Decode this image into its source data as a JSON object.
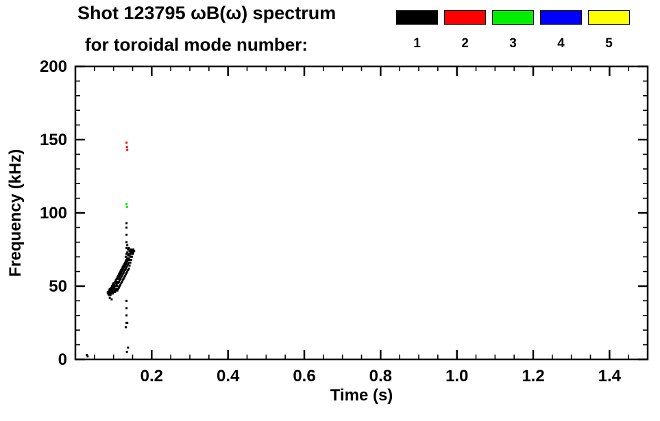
{
  "header": {
    "title_line1": "Shot 123795 ωB(ω) spectrum",
    "title_line2": "for toroidal mode number:"
  },
  "legend": {
    "items": [
      {
        "label": "1",
        "color": "#000000"
      },
      {
        "label": "2",
        "color": "#ff0000"
      },
      {
        "label": "3",
        "color": "#00ee00"
      },
      {
        "label": "4",
        "color": "#0000ff"
      },
      {
        "label": "5",
        "color": "#ffff00"
      }
    ]
  },
  "chart_data": {
    "type": "scatter",
    "title": "Shot 123795 ωB(ω) spectrum for toroidal mode number: 1-5",
    "xlabel": "Time (s)",
    "ylabel": "Frequency (kHz)",
    "xlim": [
      0,
      1.5
    ],
    "ylim": [
      0,
      200
    ],
    "xticks": [
      0.2,
      0.4,
      0.6,
      0.8,
      1.0,
      1.2,
      1.4
    ],
    "xtick_labels": [
      "0.2",
      "0.4",
      "0.6",
      "0.8",
      "1.0",
      "1.2",
      "1.4"
    ],
    "yticks": [
      0,
      50,
      100,
      150,
      200
    ],
    "ytick_labels": [
      "0",
      "50",
      "100",
      "150",
      "200"
    ],
    "x_minor_step": 0.05,
    "y_minor_step": 10,
    "grid": false,
    "legend_position": "top-right",
    "axis_color": "#000000",
    "background": "#ffffff",
    "series": [
      {
        "name": "n=1",
        "color": "#000000",
        "marker_size": 3,
        "points": [
          [
            0.03,
            3
          ],
          [
            0.032,
            2
          ],
          [
            0.085,
            45
          ],
          [
            0.085,
            46
          ],
          [
            0.088,
            44
          ],
          [
            0.088,
            46
          ],
          [
            0.088,
            47
          ],
          [
            0.09,
            42
          ],
          [
            0.09,
            45
          ],
          [
            0.09,
            47
          ],
          [
            0.09,
            48
          ],
          [
            0.092,
            44
          ],
          [
            0.092,
            46
          ],
          [
            0.092,
            48
          ],
          [
            0.094,
            45
          ],
          [
            0.094,
            47
          ],
          [
            0.094,
            49
          ],
          [
            0.095,
            41
          ],
          [
            0.096,
            46
          ],
          [
            0.096,
            48
          ],
          [
            0.096,
            50
          ],
          [
            0.098,
            45
          ],
          [
            0.098,
            47
          ],
          [
            0.098,
            49
          ],
          [
            0.098,
            51
          ],
          [
            0.1,
            46
          ],
          [
            0.1,
            48
          ],
          [
            0.1,
            50
          ],
          [
            0.1,
            52
          ],
          [
            0.102,
            47
          ],
          [
            0.102,
            49
          ],
          [
            0.102,
            51
          ],
          [
            0.104,
            46
          ],
          [
            0.104,
            48
          ],
          [
            0.104,
            50
          ],
          [
            0.104,
            53
          ],
          [
            0.106,
            47
          ],
          [
            0.106,
            50
          ],
          [
            0.106,
            52
          ],
          [
            0.106,
            54
          ],
          [
            0.108,
            48
          ],
          [
            0.108,
            51
          ],
          [
            0.108,
            53
          ],
          [
            0.108,
            55
          ],
          [
            0.11,
            47
          ],
          [
            0.11,
            50
          ],
          [
            0.11,
            53
          ],
          [
            0.11,
            56
          ],
          [
            0.112,
            48
          ],
          [
            0.112,
            52
          ],
          [
            0.112,
            55
          ],
          [
            0.112,
            57
          ],
          [
            0.114,
            49
          ],
          [
            0.114,
            53
          ],
          [
            0.114,
            56
          ],
          [
            0.114,
            58
          ],
          [
            0.116,
            50
          ],
          [
            0.116,
            54
          ],
          [
            0.116,
            57
          ],
          [
            0.116,
            59
          ],
          [
            0.118,
            51
          ],
          [
            0.118,
            55
          ],
          [
            0.118,
            58
          ],
          [
            0.118,
            60
          ],
          [
            0.12,
            52
          ],
          [
            0.12,
            56
          ],
          [
            0.12,
            59
          ],
          [
            0.12,
            61
          ],
          [
            0.122,
            53
          ],
          [
            0.122,
            57
          ],
          [
            0.122,
            60
          ],
          [
            0.122,
            62
          ],
          [
            0.124,
            54
          ],
          [
            0.124,
            58
          ],
          [
            0.124,
            61
          ],
          [
            0.124,
            63
          ],
          [
            0.126,
            55
          ],
          [
            0.126,
            59
          ],
          [
            0.126,
            62
          ],
          [
            0.126,
            64
          ],
          [
            0.128,
            56
          ],
          [
            0.128,
            60
          ],
          [
            0.128,
            63
          ],
          [
            0.128,
            65
          ],
          [
            0.13,
            57
          ],
          [
            0.13,
            61
          ],
          [
            0.13,
            64
          ],
          [
            0.13,
            66
          ],
          [
            0.132,
            22
          ],
          [
            0.132,
            58
          ],
          [
            0.132,
            62
          ],
          [
            0.132,
            65
          ],
          [
            0.132,
            67
          ],
          [
            0.132,
            70
          ],
          [
            0.134,
            25
          ],
          [
            0.134,
            30
          ],
          [
            0.134,
            35
          ],
          [
            0.134,
            40
          ],
          [
            0.134,
            59
          ],
          [
            0.134,
            63
          ],
          [
            0.134,
            66
          ],
          [
            0.134,
            68
          ],
          [
            0.134,
            72
          ],
          [
            0.134,
            76
          ],
          [
            0.134,
            80
          ],
          [
            0.134,
            85
          ],
          [
            0.134,
            90
          ],
          [
            0.134,
            93
          ],
          [
            0.135,
            5
          ],
          [
            0.136,
            25
          ],
          [
            0.136,
            60
          ],
          [
            0.136,
            64
          ],
          [
            0.136,
            67
          ],
          [
            0.136,
            69
          ],
          [
            0.136,
            73
          ],
          [
            0.136,
            78
          ],
          [
            0.138,
            8
          ],
          [
            0.138,
            61
          ],
          [
            0.138,
            65
          ],
          [
            0.138,
            68
          ],
          [
            0.138,
            71
          ],
          [
            0.138,
            75
          ],
          [
            0.14,
            62
          ],
          [
            0.14,
            66
          ],
          [
            0.14,
            69
          ],
          [
            0.14,
            72
          ],
          [
            0.14,
            76
          ],
          [
            0.142,
            64
          ],
          [
            0.142,
            68
          ],
          [
            0.142,
            71
          ],
          [
            0.142,
            74
          ],
          [
            0.144,
            66
          ],
          [
            0.144,
            70
          ],
          [
            0.144,
            73
          ],
          [
            0.144,
            75
          ],
          [
            0.146,
            68
          ],
          [
            0.146,
            72
          ],
          [
            0.146,
            74
          ],
          [
            0.148,
            70
          ],
          [
            0.148,
            73
          ],
          [
            0.148,
            75
          ],
          [
            0.15,
            72
          ],
          [
            0.15,
            74
          ],
          [
            0.152,
            73
          ],
          [
            0.152,
            75
          ],
          [
            0.154,
            74
          ]
        ]
      },
      {
        "name": "n=2",
        "color": "#ff0000",
        "marker_size": 3,
        "points": [
          [
            0.134,
            148
          ],
          [
            0.135,
            145
          ],
          [
            0.136,
            143
          ]
        ]
      },
      {
        "name": "n=3",
        "color": "#00ee00",
        "marker_size": 3,
        "points": [
          [
            0.134,
            106
          ],
          [
            0.135,
            104
          ]
        ]
      },
      {
        "name": "n=4",
        "color": "#0000ff",
        "marker_size": 3,
        "points": []
      },
      {
        "name": "n=5",
        "color": "#ffff00",
        "marker_size": 3,
        "points": []
      }
    ]
  }
}
